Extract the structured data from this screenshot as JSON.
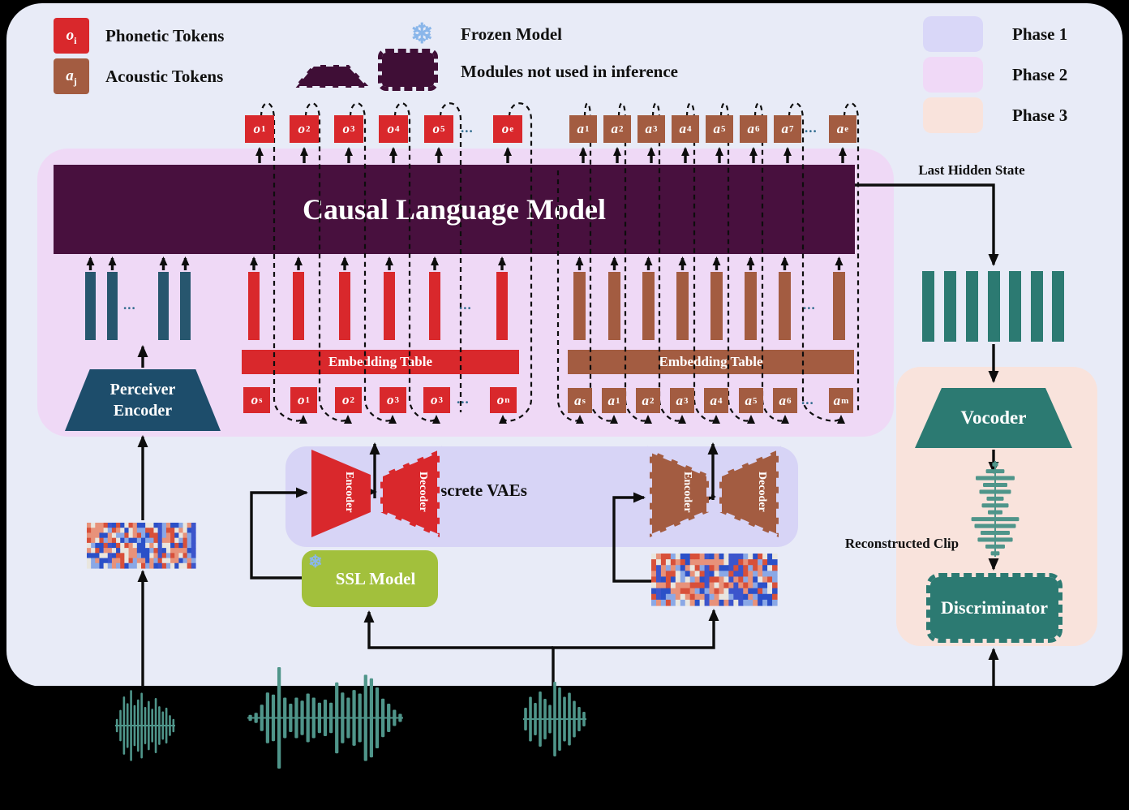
{
  "legend": {
    "phonetic_token": {
      "b": "o",
      "s": "i"
    },
    "phonetic_label": "Phonetic Tokens",
    "acoustic_token": {
      "b": "a",
      "s": "j"
    },
    "acoustic_label": "Acoustic Tokens",
    "frozen_label": "Frozen Model",
    "unused_label": "Modules not used in inference",
    "phases": [
      {
        "label": "Phase 1",
        "color": "#d9d7f8"
      },
      {
        "label": "Phase 2",
        "color": "#f0d9f7"
      },
      {
        "label": "Phase 3",
        "color": "#f9e3dc"
      }
    ]
  },
  "ellipsis": "...",
  "clm_label": "Causal Language Model",
  "last_hidden_state_label": "Last Hidden State",
  "tokens": {
    "top_phonetic": [
      {
        "b": "o",
        "s": "1"
      },
      {
        "b": "o",
        "s": "2"
      },
      {
        "b": "o",
        "s": "3"
      },
      {
        "b": "o",
        "s": "4"
      },
      {
        "b": "o",
        "s": "5"
      },
      {
        "dots": true
      },
      {
        "b": "o",
        "s": "e"
      }
    ],
    "top_acoustic": [
      {
        "b": "a",
        "s": "1"
      },
      {
        "b": "a",
        "s": "2"
      },
      {
        "b": "a",
        "s": "3"
      },
      {
        "b": "a",
        "s": "4"
      },
      {
        "b": "a",
        "s": "5"
      },
      {
        "b": "a",
        "s": "6"
      },
      {
        "b": "a",
        "s": "7"
      },
      {
        "dots": true
      },
      {
        "b": "a",
        "s": "e"
      }
    ],
    "bottom_phonetic": [
      {
        "b": "o",
        "s": "s"
      },
      {
        "b": "o",
        "s": "1"
      },
      {
        "b": "o",
        "s": "2"
      },
      {
        "b": "o",
        "s": "3"
      },
      {
        "b": "o",
        "s": "3"
      },
      {
        "dots": true
      },
      {
        "b": "o",
        "s": "n"
      }
    ],
    "bottom_acoustic": [
      {
        "b": "a",
        "s": "s"
      },
      {
        "b": "a",
        "s": "1"
      },
      {
        "b": "a",
        "s": "2"
      },
      {
        "b": "a",
        "s": "3"
      },
      {
        "b": "a",
        "s": "4"
      },
      {
        "b": "a",
        "s": "5"
      },
      {
        "b": "a",
        "s": "6"
      },
      {
        "dots": true
      },
      {
        "b": "a",
        "s": "m"
      }
    ]
  },
  "embedding_table_phonetic": "Embedding Table",
  "embedding_table_acoustic": "Embedding Table",
  "perceiver_lines": [
    "Perceiver",
    "Encoder"
  ],
  "discrete_vaes_label": "Discrete VAEs",
  "vae": {
    "encoder_label": "Encoder",
    "decoder_label": "Decoder"
  },
  "ssl_label": "SSL Model",
  "vocoder_label": "Vocoder",
  "reconstructed_clip_label": "Reconstructed Clip",
  "discriminator_label": "Discriminator",
  "colors": {
    "phonetic_red": "#d9282c",
    "acoustic_brown": "#a35c41",
    "clm_purple": "#48103e",
    "navy": "#1d4d6b",
    "hidden_bar_navy": "#27566e",
    "teal": "#2c7a72",
    "waveform_teal": "#4f958a",
    "ssl_green": "#a2c03c",
    "canvas": "#e8ebf7",
    "phase1_panel": "#d7d4f6",
    "phase2_panel": "#efd9f6",
    "phase3_panel": "#f9e3dc"
  }
}
